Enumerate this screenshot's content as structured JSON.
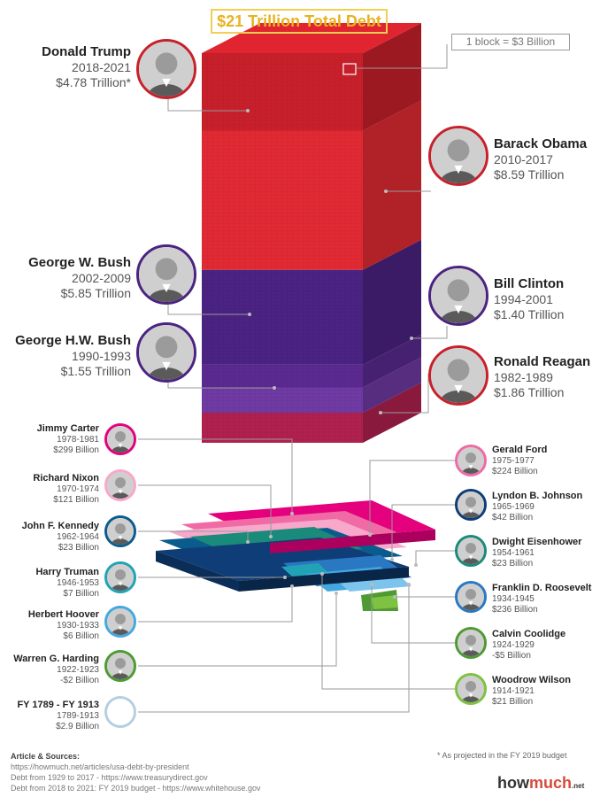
{
  "title": "$21 Trillion Total Debt",
  "legend_note": "1 block = $3 Billion",
  "chart_data": {
    "type": "bar",
    "title": "$21 Trillion Total Debt",
    "unit_note": "1 block = $3 Billion",
    "series": [
      {
        "name": "Donald Trump",
        "years": "2018-2021",
        "label": "$4.78 Trillion*",
        "value_billion": 4780,
        "color": "#c8202b"
      },
      {
        "name": "Barack Obama",
        "years": "2010-2017",
        "label": "$8.59 Trillion",
        "value_billion": 8590,
        "color": "#e12a33"
      },
      {
        "name": "Bill Clinton",
        "years": "1994-2001",
        "label": "$1.40 Trillion",
        "value_billion": 1400,
        "color": "#5b2a91"
      },
      {
        "name": "George W. Bush",
        "years": "2002-2009",
        "label": "$5.85 Trillion",
        "value_billion": 5850,
        "color": "#4b2382"
      },
      {
        "name": "George H.W. Bush",
        "years": "1990-1993",
        "label": "$1.55 Trillion",
        "value_billion": 1550,
        "color": "#6f3aa3"
      },
      {
        "name": "Ronald Reagan",
        "years": "1982-1989",
        "label": "$1.86 Trillion",
        "value_billion": 1860,
        "color": "#b0214f"
      },
      {
        "name": "Jimmy Carter",
        "years": "1978-1981",
        "label": "$299 Billion",
        "value_billion": 299,
        "color": "#e5007e"
      },
      {
        "name": "Gerald Ford",
        "years": "1975-1977",
        "label": "$224 Billion",
        "value_billion": 224,
        "color": "#f06aa5"
      },
      {
        "name": "Richard Nixon",
        "years": "1970-1974",
        "label": "$121 Billion",
        "value_billion": 121,
        "color": "#f7a8cb"
      },
      {
        "name": "Lyndon B. Johnson",
        "years": "1965-1969",
        "label": "$42 Billion",
        "value_billion": 42,
        "color": "#0f3d77"
      },
      {
        "name": "John F. Kennedy",
        "years": "1962-1964",
        "label": "$23 Billion",
        "value_billion": 23,
        "color": "#0a5c8c"
      },
      {
        "name": "Dwight Eisenhower",
        "years": "1954-1961",
        "label": "$23 Billion",
        "value_billion": 23,
        "color": "#1a8a7a"
      },
      {
        "name": "Harry Truman",
        "years": "1946-1953",
        "label": "$7 Billion",
        "value_billion": 7,
        "color": "#22a3b5"
      },
      {
        "name": "Franklin D. Roosevelt",
        "years": "1934-1945",
        "label": "$236 Billion",
        "value_billion": 236,
        "color": "#2a78c2"
      },
      {
        "name": "Herbert Hoover",
        "years": "1930-1933",
        "label": "$6 Billion",
        "value_billion": 6,
        "color": "#44a8e0"
      },
      {
        "name": "Calvin Coolidge",
        "years": "1924-1929",
        "label": "-$5 Billion",
        "value_billion": -5,
        "color": "#7cc4ee"
      },
      {
        "name": "Warren G. Harding",
        "years": "1922-1923",
        "label": "-$2 Billion",
        "value_billion": -2,
        "color": "#4f9a33"
      },
      {
        "name": "Woodrow Wilson",
        "years": "1914-1921",
        "label": "$21 Billion",
        "value_billion": 21,
        "color": "#7ec242"
      },
      {
        "name": "FY 1789 - FY 1913",
        "years": "1789-1913",
        "label": "$2.9 Billion",
        "value_billion": 2.9,
        "color": "#ffffff"
      }
    ]
  },
  "sources": {
    "heading": "Article & Sources:",
    "lines": [
      "https://howmuch.net/articles/usa-debt-by-president",
      "Debt from 1929 to 2017 - https://www.treasurydirect.gov",
      "Debt from 2018 to 2021: FY 2019 budget - https://www.whitehouse.gov"
    ]
  },
  "footnote": "* As projected in the FY 2019 budget",
  "brand": {
    "part1": "how",
    "part2": "much",
    "suffix": ".net"
  },
  "colors": {
    "title": "#e8b320",
    "republican": "#c8202b",
    "democrat": "#e12a33",
    "purple": "#4b2382"
  }
}
